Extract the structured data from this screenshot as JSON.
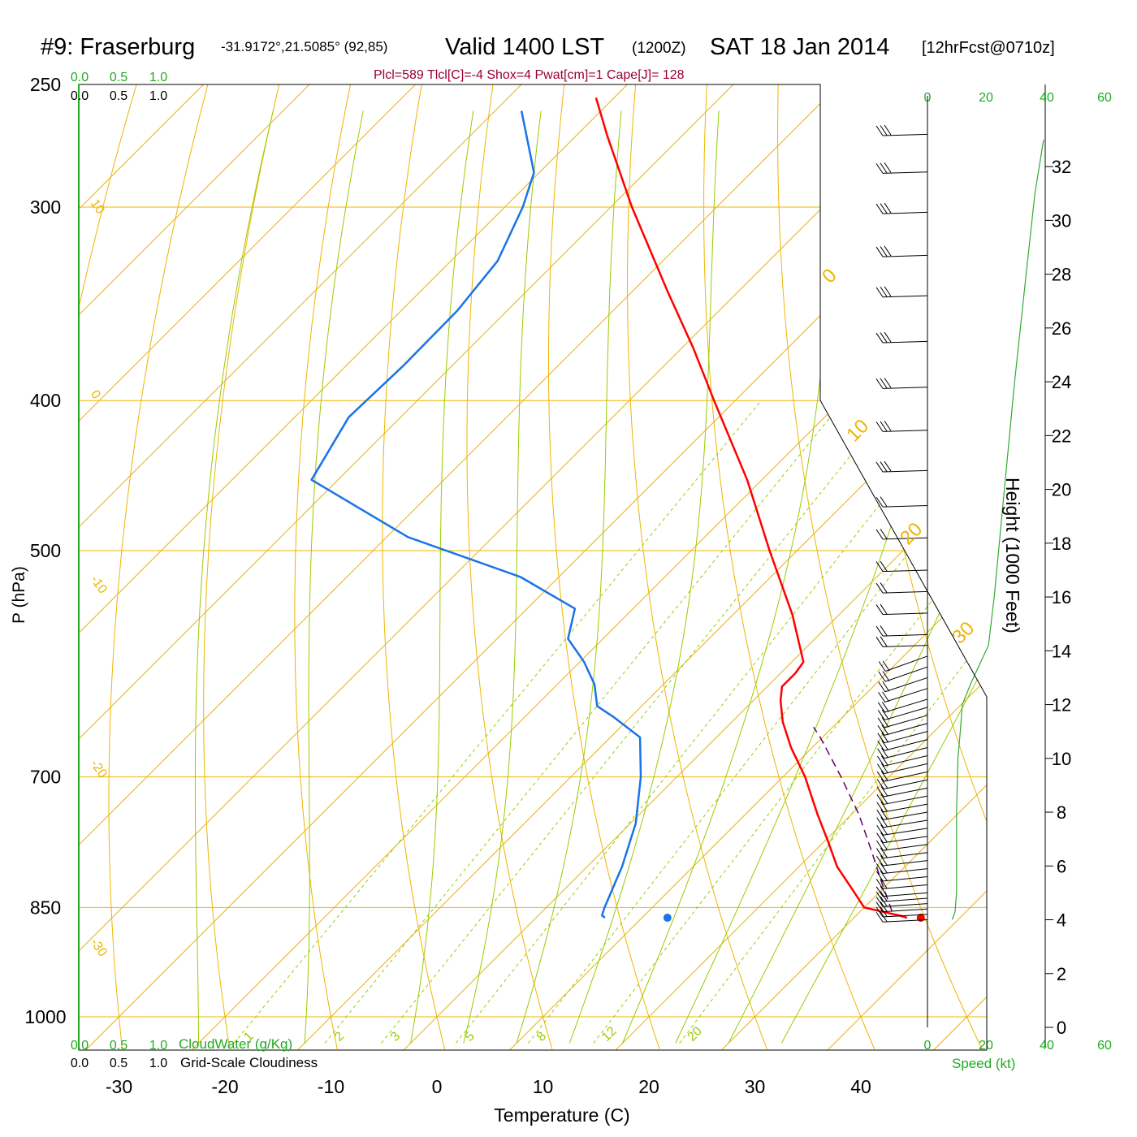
{
  "header": {
    "station": "#9: Fraserburg",
    "coords": "-31.9172°,21.5085° (92,85)",
    "valid_prefix": "Valid 1400 LST",
    "valid_utc": "(1200Z)",
    "valid_date": "SAT 18 Jan 2014",
    "forecast": "[12hrFcst@0710z]",
    "indices": "Plcl=589 Tlcl[C]=-4 Shox=4 Pwat[cm]=1 Cape[J]= 128"
  },
  "colors": {
    "isotherm": "#f0b400",
    "mixing_ratio": "#99cc00",
    "dry_adiabat": "#f0b400",
    "moist_adiabat": "#99cc00",
    "temperature": "#ff0000",
    "dewpoint": "#1a73e8",
    "parcel": "#660066",
    "indices": "#990033",
    "green_axis": "#22aa22",
    "wind_profile": "#33aa33"
  },
  "axes": {
    "ylabel": "P (hPa)",
    "xlabel": "Temperature (C)",
    "pressure_ticks": [
      "250",
      "300",
      "400",
      "500",
      "700",
      "850",
      "1000"
    ],
    "temp_ticks": [
      "-30",
      "-20",
      "-10",
      "0",
      "10",
      "20",
      "30",
      "40"
    ],
    "height_label": "Height (1000 Feet)",
    "height_ticks": [
      "0",
      "2",
      "4",
      "6",
      "8",
      "10",
      "12",
      "14",
      "16",
      "18",
      "20",
      "22",
      "24",
      "26",
      "28",
      "30",
      "32"
    ],
    "speed_label": "Speed (kt)",
    "speed_ticks": [
      "0",
      "20",
      "40",
      "60"
    ],
    "cloud_ticks": [
      "0.0",
      "0.5",
      "1.0"
    ],
    "cloudwater_label": "CloudWater (g/Kg)",
    "cloudiness_label": "Grid-Scale Cloudiness"
  },
  "chart_data": {
    "type": "line",
    "title": "#9: Fraserburg Valid 1400 LST (1200Z) SAT 18 Jan 2014 [12hrFcst@0710z]",
    "xlabel": "Temperature (C)",
    "ylabel": "P (hPa)",
    "xlim": [
      -34,
      47
    ],
    "ylim": [
      1040,
      250
    ],
    "yscale": "log",
    "skew": "45-degree skew-T",
    "series": [
      {
        "name": "temperature",
        "p": [
          863,
          860,
          855,
          850,
          830,
          800,
          770,
          740,
          700,
          670,
          645,
          625,
          612,
          600,
          590,
          570,
          550,
          500,
          450,
          400,
          370,
          340,
          300,
          270,
          255
        ],
        "value": [
          35,
          34,
          32,
          30,
          27.5,
          23.6,
          20.3,
          16.8,
          12.1,
          8,
          4.8,
          2.6,
          1.4,
          1.4,
          1.1,
          -1.6,
          -4.4,
          -12.6,
          -21.4,
          -32,
          -38.9,
          -46.7,
          -58,
          -67,
          -71.7
        ]
      },
      {
        "name": "dewpoint",
        "p": [
          863,
          860,
          850,
          800,
          750,
          700,
          660,
          640,
          630,
          610,
          590,
          570,
          545,
          520,
          490,
          450,
          410,
          380,
          350,
          325,
          300,
          285,
          260
        ],
        "value": [
          6.5,
          6,
          5.5,
          3.3,
          0.5,
          -3.4,
          -7.2,
          -11.7,
          -14.2,
          -16.5,
          -19.6,
          -23.3,
          -25.5,
          -33.6,
          -48,
          -62.5,
          -64.9,
          -64.6,
          -64.7,
          -65.6,
          -68.3,
          -70.5,
          -77.5
        ]
      },
      {
        "name": "parcel",
        "p": [
          855,
          820,
          780,
          740,
          700,
          660,
          650
        ],
        "value": [
          33,
          29.4,
          25.2,
          20.7,
          15.5,
          9.8,
          8.2
        ]
      }
    ],
    "surface_points": [
      {
        "name": "surface temperature",
        "p": 863,
        "value": 36.3
      },
      {
        "name": "surface dewpoint",
        "p": 863,
        "value": 12.4
      }
    ],
    "indices": {
      "Plcl": 589,
      "Tlcl_C": -4,
      "Shox": 4,
      "Pwat_cm": 1,
      "Cape_J": 128
    },
    "height_kft_range": [
      0,
      33
    ],
    "speed_kt_range": [
      0,
      60
    ],
    "wind_speed_profile": {
      "height_kft": [
        4,
        4.3,
        5,
        6,
        8,
        10,
        11,
        12,
        12.8,
        13.5,
        14.2,
        16,
        20,
        24,
        28,
        31,
        33
      ],
      "speed_kt": [
        8.5,
        9.5,
        10,
        10,
        10,
        10.5,
        11.3,
        12,
        15,
        18,
        21,
        23,
        26.5,
        30,
        34,
        37,
        40
      ]
    },
    "wind_barb_heights_kft": [
      4,
      4.2,
      4.4,
      4.6,
      4.8,
      5,
      5.3,
      5.6,
      5.9,
      6.2,
      6.5,
      6.8,
      7.1,
      7.4,
      7.7,
      8,
      8.3,
      8.6,
      8.9,
      9.2,
      9.5,
      9.8,
      10.1,
      10.4,
      10.7,
      11,
      11.3,
      11.6,
      11.9,
      12.2,
      12.6,
      13,
      13.4,
      13.8,
      14.2,
      14.6,
      15.4,
      16.2,
      17,
      18.2,
      19.4,
      20.7,
      22.2,
      23.8,
      25.5,
      27.2,
      28.7,
      30.3,
      31.8,
      33.2
    ],
    "grid": true
  }
}
